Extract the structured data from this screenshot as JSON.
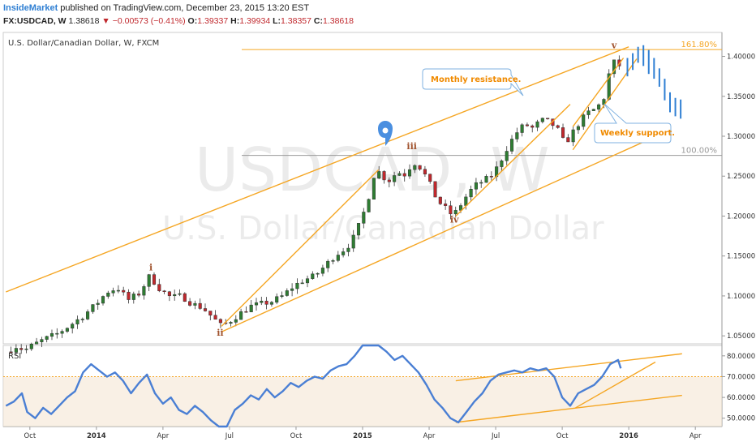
{
  "header": {
    "brand": "InsideMarket",
    "published": " published on TradingView.com, December 23, 2015 13:20 EST",
    "symbol": "FX:USDCAD, W",
    "last": "1.38618",
    "arrow": "▼",
    "change": "−0.00573 (−0.41%)",
    "o_label": "O:",
    "o": "1.39337",
    "h_label": "H:",
    "h": "1.39934",
    "l_label": "L:",
    "l": "1.38357",
    "c_label": "C:",
    "c": "1.38618"
  },
  "chart_data": [
    {
      "type": "candlestick",
      "title": "U.S. Dollar/Canadian Dollar, W, FXCM",
      "watermark": "USDCAD, W",
      "watermark_sub": "U.S. Dollar/Canadian Dollar",
      "ylim": [
        1.04,
        1.43
      ],
      "yticks": [
        1.05,
        1.1,
        1.15,
        1.2,
        1.25,
        1.3,
        1.35,
        1.4
      ],
      "ytick_labels": [
        "1.05000",
        "1.10000",
        "1.15000",
        "1.20000",
        "1.25000",
        "1.30000",
        "1.35000",
        "1.40000"
      ],
      "xlim": [
        2013.65,
        2016.35
      ],
      "xticks": [
        {
          "x": 2013.75,
          "label": "Oct"
        },
        {
          "x": 2014.0,
          "label": "2014"
        },
        {
          "x": 2014.25,
          "label": "Apr"
        },
        {
          "x": 2014.5,
          "label": "Jul"
        },
        {
          "x": 2014.75,
          "label": "Oct"
        },
        {
          "x": 2015.0,
          "label": "2015"
        },
        {
          "x": 2015.25,
          "label": "Apr"
        },
        {
          "x": 2015.5,
          "label": "Jul"
        },
        {
          "x": 2015.75,
          "label": "Oct"
        },
        {
          "x": 2016.0,
          "label": "2016"
        },
        {
          "x": 2016.25,
          "label": "Apr"
        }
      ],
      "path": [
        [
          2013.66,
          1.03
        ],
        [
          2013.7,
          1.037
        ],
        [
          2013.73,
          1.032
        ],
        [
          2013.76,
          1.038
        ],
        [
          2013.8,
          1.045
        ],
        [
          2013.85,
          1.052
        ],
        [
          2013.9,
          1.063
        ],
        [
          2013.95,
          1.075
        ],
        [
          2014.0,
          1.09
        ],
        [
          2014.04,
          1.105
        ],
        [
          2014.08,
          1.11
        ],
        [
          2014.12,
          1.095
        ],
        [
          2014.16,
          1.103
        ],
        [
          2014.2,
          1.125
        ],
        [
          2014.24,
          1.108
        ],
        [
          2014.28,
          1.098
        ],
        [
          2014.32,
          1.1
        ],
        [
          2014.36,
          1.09
        ],
        [
          2014.4,
          1.085
        ],
        [
          2014.44,
          1.072
        ],
        [
          2014.47,
          1.062
        ],
        [
          2014.5,
          1.068
        ],
        [
          2014.54,
          1.078
        ],
        [
          2014.58,
          1.087
        ],
        [
          2014.62,
          1.09
        ],
        [
          2014.66,
          1.093
        ],
        [
          2014.7,
          1.1
        ],
        [
          2014.74,
          1.112
        ],
        [
          2014.78,
          1.12
        ],
        [
          2014.82,
          1.125
        ],
        [
          2014.86,
          1.138
        ],
        [
          2014.9,
          1.152
        ],
        [
          2014.94,
          1.16
        ],
        [
          2014.97,
          1.175
        ],
        [
          2015.0,
          1.2
        ],
        [
          2015.03,
          1.232
        ],
        [
          2015.05,
          1.262
        ],
        [
          2015.07,
          1.25
        ],
        [
          2015.1,
          1.245
        ],
        [
          2015.13,
          1.255
        ],
        [
          2015.16,
          1.252
        ],
        [
          2015.19,
          1.268
        ],
        [
          2015.22,
          1.26
        ],
        [
          2015.25,
          1.242
        ],
        [
          2015.28,
          1.22
        ],
        [
          2015.31,
          1.21
        ],
        [
          2015.34,
          1.2
        ],
        [
          2015.37,
          1.215
        ],
        [
          2015.4,
          1.23
        ],
        [
          2015.43,
          1.24
        ],
        [
          2015.46,
          1.245
        ],
        [
          2015.49,
          1.252
        ],
        [
          2015.52,
          1.27
        ],
        [
          2015.55,
          1.29
        ],
        [
          2015.58,
          1.305
        ],
        [
          2015.61,
          1.315
        ],
        [
          2015.64,
          1.31
        ],
        [
          2015.67,
          1.32
        ],
        [
          2015.7,
          1.318
        ],
        [
          2015.73,
          1.31
        ],
        [
          2015.76,
          1.29
        ],
        [
          2015.79,
          1.305
        ],
        [
          2015.82,
          1.32
        ],
        [
          2015.85,
          1.33
        ],
        [
          2015.88,
          1.335
        ],
        [
          2015.91,
          1.35
        ],
        [
          2015.93,
          1.385
        ],
        [
          2015.95,
          1.395
        ],
        [
          2015.97,
          1.386
        ]
      ],
      "hlines": [
        {
          "y": 1.4085,
          "label": "161.80%",
          "color": "#f5a623"
        },
        {
          "y": 1.276,
          "label": "100.00%",
          "color": "#999999"
        }
      ],
      "wave_labels": [
        {
          "text": "i",
          "x": 2014.205,
          "y": 1.132
        },
        {
          "text": "ii",
          "x": 2014.465,
          "y": 1.05
        },
        {
          "text": "iii",
          "x": 2015.185,
          "y": 1.284
        },
        {
          "text": "iv",
          "x": 2015.345,
          "y": 1.192
        },
        {
          "text": "v",
          "x": 2015.945,
          "y": 1.41
        }
      ],
      "callouts": [
        {
          "text": "Monthly resistance."
        },
        {
          "text": "Weekly support."
        }
      ],
      "channels": [
        {
          "points": [
            [
              2013.66,
              1.105
            ],
            [
              2016.0,
              1.412
            ]
          ],
          "color": "#f5a623"
        },
        {
          "points": [
            [
              2014.47,
              1.055
            ],
            [
              2016.05,
              1.292
            ]
          ],
          "color": "#f5a623"
        },
        {
          "points": [
            [
              2014.47,
              1.062
            ],
            [
              2015.06,
              1.258
            ]
          ],
          "color": "#f5a623"
        },
        {
          "points": [
            [
              2015.35,
              1.2
            ],
            [
              2015.78,
              1.34
            ]
          ],
          "color": "#f5a623"
        },
        {
          "points": [
            [
              2015.79,
              1.312
            ],
            [
              2015.98,
              1.398
            ]
          ],
          "color": "#f5a623"
        },
        {
          "points": [
            [
              2015.79,
              1.283
            ],
            [
              2016.03,
              1.397
            ]
          ],
          "color": "#f5a623"
        }
      ],
      "projection_bars": [
        {
          "x": 1.0,
          "top": 1.398,
          "bottom": 1.375
        },
        {
          "x": 2.0,
          "top": 1.404,
          "bottom": 1.383
        },
        {
          "x": 3.0,
          "top": 1.412,
          "bottom": 1.392
        },
        {
          "x": 4.0,
          "top": 1.414,
          "bottom": 1.388
        },
        {
          "x": 5.0,
          "top": 1.408,
          "bottom": 1.378
        },
        {
          "x": 6.0,
          "top": 1.398,
          "bottom": 1.372
        },
        {
          "x": 7.0,
          "top": 1.385,
          "bottom": 1.362
        },
        {
          "x": 8.0,
          "top": 1.372,
          "bottom": 1.345
        },
        {
          "x": 9.0,
          "top": 1.355,
          "bottom": 1.33
        },
        {
          "x": 10.0,
          "top": 1.348,
          "bottom": 1.325
        },
        {
          "x": 11.0,
          "top": 1.346,
          "bottom": 1.322
        }
      ],
      "colors": {
        "up": "#2e7d32",
        "down": "#c0282d",
        "channel": "#f5a623",
        "projection": "#2f7fd3"
      }
    },
    {
      "type": "line",
      "title": "RSI",
      "ylim": [
        46,
        85
      ],
      "yticks": [
        50,
        60,
        70,
        80
      ],
      "ytick_labels": [
        "50.0000",
        "60.0000",
        "70.0000",
        "80.0000"
      ],
      "levels": [
        30,
        70
      ],
      "series": [
        {
          "values": [
            [
              2013.66,
              56
            ],
            [
              2013.69,
              58
            ],
            [
              2013.72,
              62
            ],
            [
              2013.74,
              53
            ],
            [
              2013.77,
              50
            ],
            [
              2013.8,
              55
            ],
            [
              2013.83,
              52
            ],
            [
              2013.86,
              56
            ],
            [
              2013.89,
              60
            ],
            [
              2013.92,
              63
            ],
            [
              2013.95,
              72
            ],
            [
              2013.98,
              76
            ],
            [
              2014.01,
              73
            ],
            [
              2014.04,
              70
            ],
            [
              2014.07,
              72
            ],
            [
              2014.1,
              68
            ],
            [
              2014.13,
              62
            ],
            [
              2014.16,
              67
            ],
            [
              2014.19,
              71
            ],
            [
              2014.22,
              62
            ],
            [
              2014.25,
              57
            ],
            [
              2014.28,
              60
            ],
            [
              2014.31,
              54
            ],
            [
              2014.34,
              52
            ],
            [
              2014.37,
              56
            ],
            [
              2014.4,
              53
            ],
            [
              2014.43,
              49
            ],
            [
              2014.46,
              45
            ],
            [
              2014.49,
              46
            ],
            [
              2014.52,
              54
            ],
            [
              2014.55,
              57
            ],
            [
              2014.58,
              61
            ],
            [
              2014.61,
              59
            ],
            [
              2014.64,
              64
            ],
            [
              2014.67,
              60
            ],
            [
              2014.7,
              63
            ],
            [
              2014.73,
              67
            ],
            [
              2014.76,
              65
            ],
            [
              2014.79,
              68
            ],
            [
              2014.82,
              70
            ],
            [
              2014.85,
              69
            ],
            [
              2014.88,
              73
            ],
            [
              2014.91,
              75
            ],
            [
              2014.94,
              76
            ],
            [
              2014.97,
              80
            ],
            [
              2015.0,
              86
            ],
            [
              2015.03,
              93
            ],
            [
              2015.06,
              88
            ],
            [
              2015.09,
              82
            ],
            [
              2015.12,
              78
            ],
            [
              2015.15,
              80
            ],
            [
              2015.18,
              76
            ],
            [
              2015.21,
              72
            ],
            [
              2015.24,
              66
            ],
            [
              2015.27,
              59
            ],
            [
              2015.3,
              55
            ],
            [
              2015.33,
              50
            ],
            [
              2015.36,
              48
            ],
            [
              2015.39,
              53
            ],
            [
              2015.42,
              58
            ],
            [
              2015.45,
              62
            ],
            [
              2015.48,
              68
            ],
            [
              2015.51,
              71
            ],
            [
              2015.54,
              72
            ],
            [
              2015.57,
              73
            ],
            [
              2015.6,
              72
            ],
            [
              2015.63,
              74
            ],
            [
              2015.66,
              73
            ],
            [
              2015.69,
              74
            ],
            [
              2015.72,
              70
            ],
            [
              2015.75,
              60
            ],
            [
              2015.78,
              56
            ],
            [
              2015.81,
              62
            ],
            [
              2015.84,
              64
            ],
            [
              2015.87,
              66
            ],
            [
              2015.9,
              70
            ],
            [
              2015.93,
              76
            ],
            [
              2015.96,
              78
            ],
            [
              2015.97,
              74
            ]
          ],
          "color": "#4a7fd4"
        }
      ],
      "channels": [
        {
          "points": [
            [
              2015.35,
              68
            ],
            [
              2016.2,
              81
            ]
          ],
          "color": "#f5a623"
        },
        {
          "points": [
            [
              2015.35,
              48
            ],
            [
              2016.2,
              61
            ]
          ],
          "color": "#f5a623"
        },
        {
          "points": [
            [
              2015.8,
              55
            ],
            [
              2016.1,
              77
            ]
          ],
          "color": "#f5a623"
        }
      ]
    }
  ]
}
